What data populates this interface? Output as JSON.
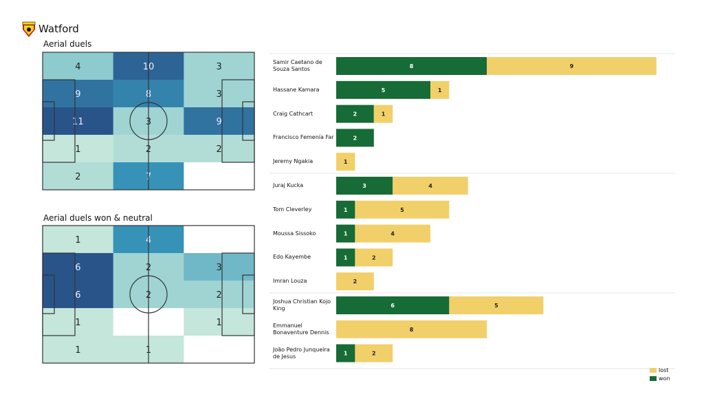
{
  "header": {
    "team": "Watford",
    "logo": "watford-crest"
  },
  "colors": {
    "won": "#176b36",
    "lost": "#f1d06a",
    "heat_low": "#c4e6db",
    "heat_high": "#29548a"
  },
  "chart_data": [
    {
      "type": "heatmap",
      "title": "Aerial duels",
      "rows": 5,
      "cols": 3,
      "values": [
        [
          4,
          10,
          3
        ],
        [
          9,
          8,
          3
        ],
        [
          11,
          3,
          9
        ],
        [
          1,
          2,
          2
        ],
        [
          2,
          7,
          null
        ]
      ]
    },
    {
      "type": "heatmap",
      "title": "Aerial duels won & neutral",
      "rows": 5,
      "cols": 3,
      "values": [
        [
          1,
          4,
          null
        ],
        [
          6,
          2,
          3
        ],
        [
          6,
          2,
          2
        ],
        [
          1,
          null,
          1
        ],
        [
          1,
          1,
          null
        ]
      ]
    },
    {
      "type": "bar",
      "orientation": "horizontal",
      "stacked": true,
      "categories": [
        "Samir Caetano de Souza Santos",
        "Hassane Kamara",
        "Craig Cathcart",
        "Francisco Femenía Far",
        "Jeremy Ngakia",
        "Juraj Kucka",
        "Tom Cleverley",
        "Moussa Sissoko",
        "Edo Kayembe",
        "Imran Louza",
        "Joshua Christian Kojo King",
        "Emmanuel Bonaventure Dennis",
        "João Pedro Junqueira de Jesus"
      ],
      "series": [
        {
          "name": "won",
          "values": [
            8,
            5,
            2,
            2,
            0,
            3,
            1,
            1,
            1,
            0,
            6,
            0,
            1
          ]
        },
        {
          "name": "lost",
          "values": [
            9,
            1,
            1,
            0,
            1,
            4,
            5,
            4,
            2,
            2,
            5,
            8,
            2
          ]
        }
      ],
      "legend": {
        "position": "bottom-right",
        "entries": [
          "lost",
          "won"
        ]
      }
    }
  ]
}
